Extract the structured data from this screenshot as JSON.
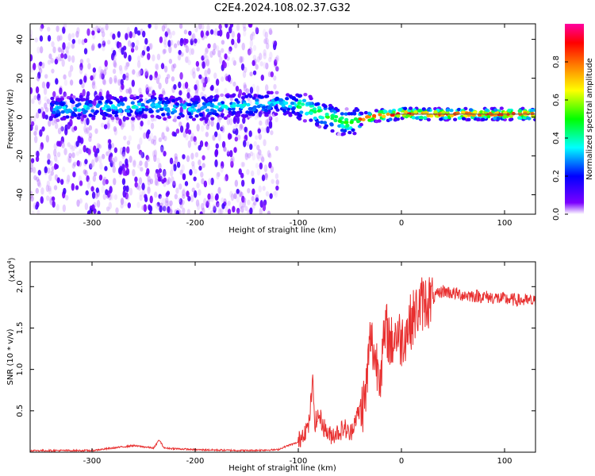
{
  "title": "C2E4.2024.108.02.37.G32",
  "chart_data": [
    {
      "type": "heatmap",
      "xlabel": "Height of straight line (km)",
      "ylabel": "Frequency (Hz)",
      "xlim": [
        -360,
        130
      ],
      "ylim": [
        -50,
        48
      ],
      "x_ticks": [
        -300,
        -200,
        -100,
        0,
        100
      ],
      "y_ticks": [
        -40,
        -20,
        0,
        20,
        40
      ],
      "colorbar": {
        "label": "Normalized spectral amplitude",
        "range": [
          0,
          1
        ],
        "ticks": [
          "0.0",
          "0.2",
          "0.4",
          "0.6",
          "0.8"
        ],
        "colors": [
          "#ffffff",
          "#7b00ff",
          "#0000ff",
          "#00ffff",
          "#00ff00",
          "#ffff00",
          "#ff7f00",
          "#ff0000",
          "#ff00a0"
        ]
      },
      "ridge": {
        "x": [
          -340,
          -300,
          -260,
          -240,
          -220,
          -120,
          -100,
          -90,
          -80,
          -70,
          -60,
          -50,
          -40,
          -30,
          -20,
          -10,
          0,
          20,
          50,
          80,
          130
        ],
        "y": [
          4,
          5,
          5,
          6,
          4,
          7,
          6,
          4,
          2,
          0,
          -2,
          -3,
          -1,
          0,
          1,
          1,
          2,
          1.5,
          1.5,
          1.5,
          1.5
        ]
      },
      "noise_region_x": [
        -360,
        -120
      ],
      "reference_line_y": 1.5
    },
    {
      "type": "line",
      "xlabel": "Height of straight line (km)",
      "ylabel": "SNR (10 * v/v)",
      "multiplier_label": "(x10",
      "multiplier_exp": "4",
      "multiplier_close": ")",
      "xlim": [
        -360,
        130
      ],
      "ylim": [
        0,
        2.3
      ],
      "x_ticks": [
        -300,
        -200,
        -100,
        0,
        100
      ],
      "y_ticks": [
        0.5,
        1.0,
        1.5,
        2.0
      ],
      "y_tick_labels": [
        "0.5",
        "1.0",
        "1.5",
        "2.0"
      ],
      "line_color": "#e83030",
      "x": [
        -360,
        -300,
        -260,
        -240,
        -235,
        -230,
        -200,
        -150,
        -120,
        -110,
        -100,
        -95,
        -90,
        -86,
        -84,
        -80,
        -75,
        -70,
        -60,
        -55,
        -50,
        -45,
        -40,
        -35,
        -30,
        -25,
        -20,
        -15,
        -10,
        -5,
        0,
        10,
        20,
        30,
        40,
        50,
        60,
        80,
        100,
        120,
        130
      ],
      "values": [
        0.02,
        0.02,
        0.08,
        0.05,
        0.15,
        0.05,
        0.03,
        0.02,
        0.03,
        0.08,
        0.12,
        0.25,
        0.3,
        0.85,
        0.35,
        0.45,
        0.3,
        0.2,
        0.25,
        0.3,
        0.2,
        0.4,
        0.5,
        0.65,
        1.4,
        1.1,
        1.0,
        1.5,
        1.3,
        1.45,
        1.35,
        1.6,
        1.8,
        1.85,
        1.95,
        1.92,
        1.9,
        1.88,
        1.85,
        1.83,
        1.82
      ]
    }
  ]
}
